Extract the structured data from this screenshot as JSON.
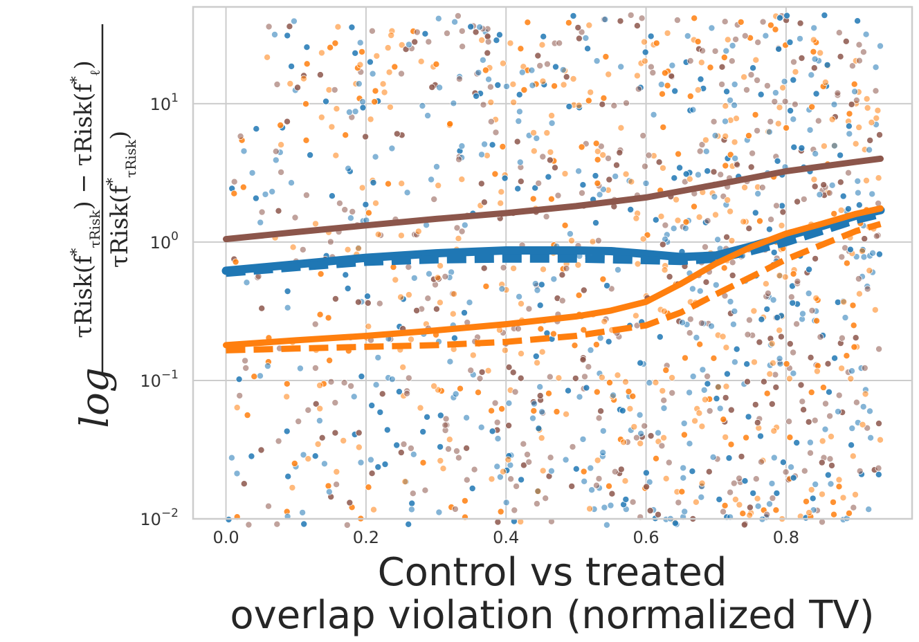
{
  "chart_data": {
    "type": "scatter",
    "xlabel_line1": "Control vs treated",
    "xlabel_line2": "overlap violation (normalized TV)",
    "ylabel": {
      "prefix": "log",
      "numerator_a": "τRisk(f",
      "numerator_a_sub": "τRisk",
      "numerator_mid": ") − τRisk(f",
      "numerator_b_sub": "ℓ",
      "numerator_end": ")",
      "star": "*",
      "denominator": "τRisk(f",
      "denominator_sub": "τRisk",
      "denominator_end": ")"
    },
    "xlim": [
      -0.047,
      0.98
    ],
    "ylim": [
      0.01,
      50
    ],
    "yscale": "log",
    "grid": true,
    "x_ticks": [
      {
        "value": 0.0,
        "label": "0.0"
      },
      {
        "value": 0.2,
        "label": "0.2"
      },
      {
        "value": 0.4,
        "label": "0.4"
      },
      {
        "value": 0.6,
        "label": "0.6"
      },
      {
        "value": 0.8,
        "label": "0.8"
      }
    ],
    "y_ticks": [
      {
        "value": 0.01,
        "base": "10",
        "exp": "−2"
      },
      {
        "value": 0.1,
        "base": "10",
        "exp": "−1"
      },
      {
        "value": 1,
        "base": "10",
        "exp": "0"
      },
      {
        "value": 10,
        "base": "10",
        "exp": "1"
      }
    ],
    "scatter_colors": [
      "#1f77b4",
      "#ff7f0e",
      "#8c564b"
    ],
    "scatter_points_per_color": 500,
    "scatter_x_range": [
      0.0,
      0.935
    ],
    "scatter_opacity": 0.55,
    "series": [
      {
        "color": "#8c564b",
        "style": "solid",
        "width": 9,
        "x": [
          0.0,
          0.1,
          0.2,
          0.3,
          0.4,
          0.5,
          0.6,
          0.7,
          0.8,
          0.9,
          0.935
        ],
        "y": [
          1.05,
          1.18,
          1.32,
          1.47,
          1.62,
          1.82,
          2.1,
          2.6,
          3.25,
          3.8,
          4.0
        ]
      },
      {
        "color": "#1f77b4",
        "style": "solid",
        "width": 12,
        "x": [
          0.0,
          0.1,
          0.2,
          0.3,
          0.4,
          0.5,
          0.55,
          0.6,
          0.65,
          0.7,
          0.75,
          0.8,
          0.85,
          0.9,
          0.935
        ],
        "y": [
          0.62,
          0.69,
          0.77,
          0.83,
          0.87,
          0.87,
          0.86,
          0.82,
          0.78,
          0.8,
          0.93,
          1.1,
          1.3,
          1.55,
          1.7
        ]
      },
      {
        "color": "#1f77b4",
        "style": "dashed",
        "width": 12,
        "x": [
          0.0,
          0.1,
          0.2,
          0.3,
          0.4,
          0.5,
          0.6,
          0.65,
          0.7,
          0.75,
          0.8,
          0.85,
          0.9,
          0.935
        ],
        "y": [
          0.6,
          0.66,
          0.72,
          0.75,
          0.76,
          0.76,
          0.74,
          0.73,
          0.76,
          0.86,
          1.0,
          1.2,
          1.45,
          1.6
        ]
      },
      {
        "color": "#ff7f0e",
        "style": "solid",
        "width": 9,
        "x": [
          0.0,
          0.1,
          0.2,
          0.3,
          0.4,
          0.5,
          0.55,
          0.6,
          0.65,
          0.7,
          0.75,
          0.8,
          0.85,
          0.9,
          0.935
        ],
        "y": [
          0.18,
          0.195,
          0.21,
          0.23,
          0.255,
          0.29,
          0.32,
          0.37,
          0.5,
          0.7,
          0.92,
          1.15,
          1.35,
          1.6,
          1.75
        ]
      },
      {
        "color": "#ff7f0e",
        "style": "dashed",
        "width": 9,
        "x": [
          0.0,
          0.1,
          0.2,
          0.3,
          0.4,
          0.5,
          0.6,
          0.65,
          0.7,
          0.75,
          0.8,
          0.85,
          0.9,
          0.935
        ],
        "y": [
          0.165,
          0.17,
          0.175,
          0.18,
          0.19,
          0.21,
          0.25,
          0.31,
          0.42,
          0.56,
          0.75,
          0.95,
          1.2,
          1.35
        ]
      }
    ]
  }
}
